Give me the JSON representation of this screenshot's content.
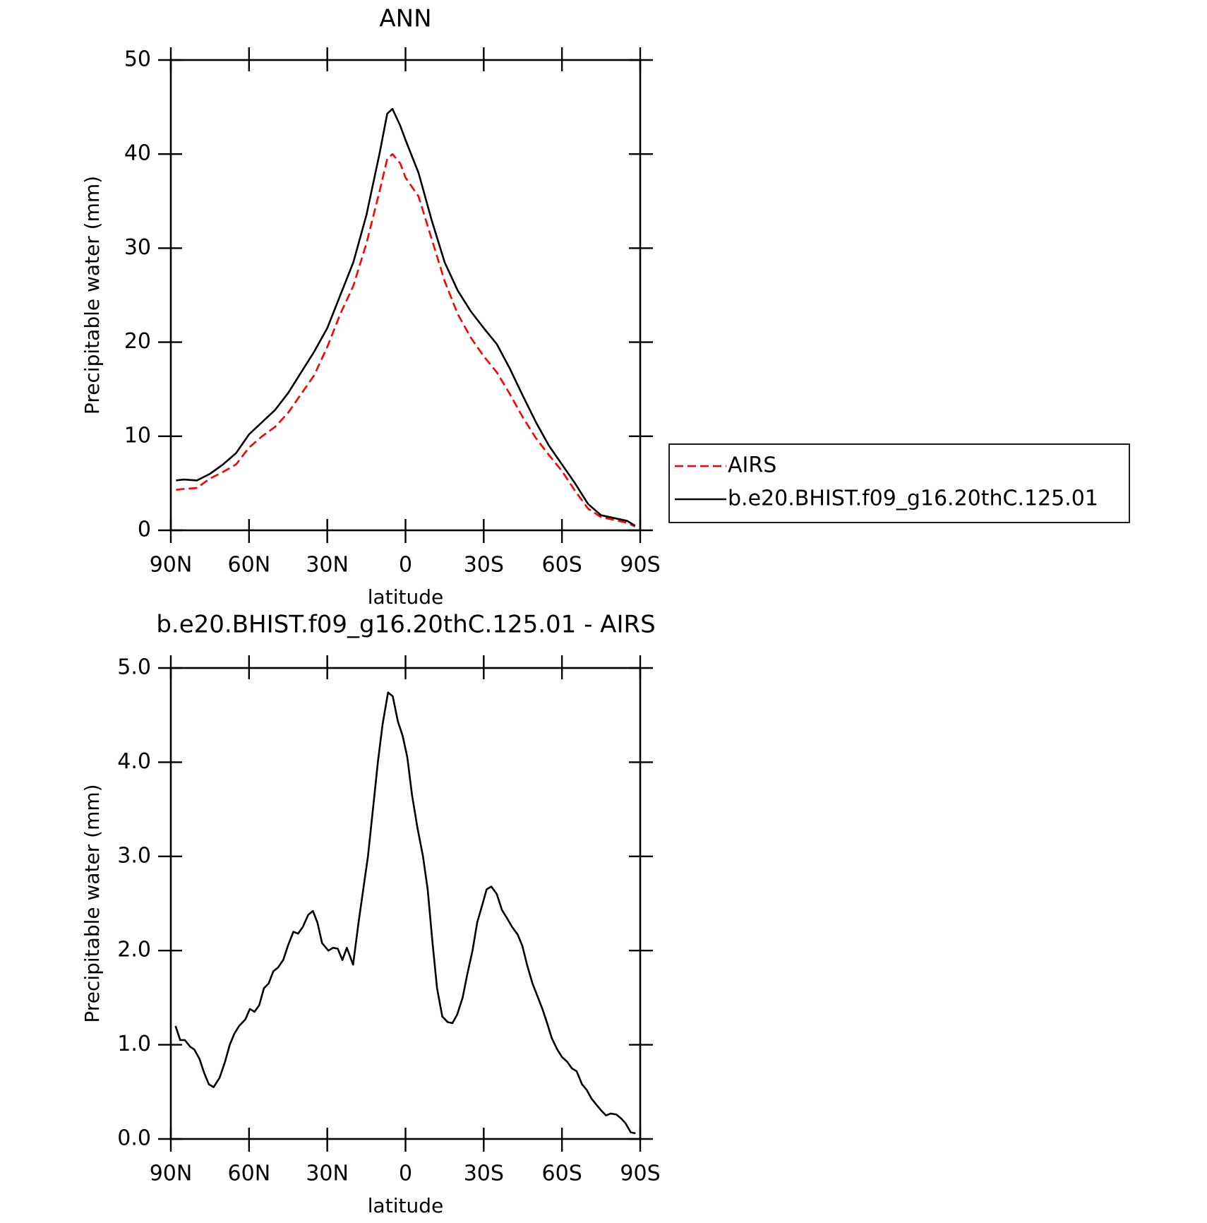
{
  "chart_data": [
    {
      "type": "line",
      "title": "ANN",
      "x_label": "latitude",
      "y_label": "Precipitable water (mm)",
      "x": [
        88,
        85,
        80,
        75,
        70,
        65,
        60,
        55,
        50,
        45,
        40,
        35,
        30,
        25,
        20,
        15,
        10,
        7,
        5,
        2,
        0,
        -5,
        -10,
        -15,
        -20,
        -25,
        -30,
        -35,
        -40,
        -45,
        -50,
        -55,
        -60,
        -65,
        -70,
        -75,
        -80,
        -85,
        -88
      ],
      "series": [
        {
          "name": "AIRS",
          "color": "#ff0000",
          "line_style": "dashed",
          "values": [
            4.3,
            4.4,
            4.5,
            5.5,
            6.2,
            7.0,
            8.8,
            10.0,
            11.0,
            12.5,
            14.5,
            16.5,
            19.5,
            23.0,
            26.0,
            30.5,
            36.0,
            39.5,
            40.0,
            39.0,
            37.5,
            35.5,
            31.0,
            26.5,
            23.0,
            20.5,
            18.5,
            16.8,
            14.5,
            12.0,
            9.8,
            8.0,
            6.3,
            4.2,
            2.3,
            1.4,
            1.1,
            0.8,
            0.4
          ]
        },
        {
          "name": "b.e20.BHIST.f09_g16.20thC.125.01",
          "color": "#000000",
          "line_style": "solid",
          "values": [
            5.3,
            5.4,
            5.3,
            6.0,
            7.0,
            8.2,
            10.2,
            11.5,
            12.8,
            14.6,
            16.8,
            19.0,
            21.5,
            25.0,
            28.5,
            33.5,
            40.0,
            44.3,
            44.8,
            43.0,
            41.5,
            38.0,
            33.0,
            28.5,
            25.5,
            23.3,
            21.5,
            19.8,
            17.2,
            14.3,
            11.5,
            9.0,
            7.0,
            5.0,
            2.8,
            1.6,
            1.3,
            1.0,
            0.5
          ]
        }
      ],
      "xlim": [
        90,
        -90
      ],
      "xticks": [
        {
          "value": 90,
          "label": "90N"
        },
        {
          "value": 60,
          "label": "60N"
        },
        {
          "value": 30,
          "label": "30N"
        },
        0,
        {
          "value": -30,
          "label": "30S"
        },
        {
          "value": -60,
          "label": "60S"
        },
        {
          "value": -90,
          "label": "90S"
        }
      ],
      "ylim": [
        0,
        50
      ],
      "yticks": [
        0,
        10,
        20,
        30,
        40,
        50
      ],
      "legend": "right"
    },
    {
      "type": "line",
      "title": "b.e20.BHIST.f09_g16.20thC.125.01 - AIRS",
      "x_label": "latitude",
      "y_label": "Precipitable water (mm)",
      "x": [
        88.2,
        86.4,
        84.6,
        82.6,
        81,
        79,
        77.2,
        75.4,
        73.6,
        71.3,
        69.2,
        67.4,
        65.6,
        63.8,
        61.4,
        59.7,
        57.9,
        56.1,
        54.3,
        52.5,
        50.7,
        48.9,
        46.9,
        45.1,
        43,
        41.2,
        39.4,
        37.3,
        35.5,
        33.8,
        32,
        29.6,
        27.8,
        26,
        24.2,
        22.5,
        20.1,
        18,
        16.2,
        14.4,
        12.3,
        10.6,
        8.8,
        6.7,
        4.9,
        2.9,
        1.1,
        -0.7,
        -2.5,
        -4.6,
        -6.7,
        -8.5,
        -10.3,
        -12.1,
        -14.1,
        -16.2,
        -18,
        -19.8,
        -21.9,
        -23.7,
        -25.7,
        -27.5,
        -29.6,
        -31.1,
        -32.9,
        -35,
        -37,
        -38.8,
        -40.9,
        -43,
        -44.8,
        -46.6,
        -48.7,
        -50.4,
        -52.5,
        -54.3,
        -56.1,
        -58.2,
        -60,
        -62,
        -63.8,
        -65.6,
        -67.7,
        -69.5,
        -71.3,
        -73.3,
        -75.1,
        -76.9,
        -78.7,
        -80.8,
        -82.6,
        -84.3,
        -86.4,
        -88.2
      ],
      "values": [
        1.2,
        1.05,
        1.05,
        0.98,
        0.95,
        0.85,
        0.7,
        0.58,
        0.55,
        0.65,
        0.82,
        1.0,
        1.12,
        1.2,
        1.27,
        1.38,
        1.35,
        1.42,
        1.6,
        1.65,
        1.78,
        1.82,
        1.9,
        2.05,
        2.2,
        2.18,
        2.25,
        2.38,
        2.42,
        2.3,
        2.08,
        2.0,
        2.03,
        2.02,
        1.9,
        2.03,
        1.85,
        2.3,
        2.65,
        3.0,
        3.55,
        4.0,
        4.4,
        4.74,
        4.7,
        4.43,
        4.28,
        4.05,
        3.65,
        3.3,
        3.0,
        2.65,
        2.1,
        1.6,
        1.3,
        1.24,
        1.23,
        1.32,
        1.5,
        1.75,
        2.0,
        2.3,
        2.5,
        2.65,
        2.68,
        2.6,
        2.43,
        2.35,
        2.25,
        2.17,
        2.05,
        1.85,
        1.65,
        1.53,
        1.38,
        1.23,
        1.07,
        0.95,
        0.87,
        0.82,
        0.75,
        0.72,
        0.58,
        0.52,
        0.43,
        0.36,
        0.3,
        0.25,
        0.27,
        0.26,
        0.22,
        0.17,
        0.07,
        0.06
      ],
      "color": "#000000",
      "xlim": [
        90,
        -90
      ],
      "xticks": [
        {
          "value": 90,
          "label": "90N"
        },
        {
          "value": 60,
          "label": "60N"
        },
        {
          "value": 30,
          "label": "30N"
        },
        0,
        {
          "value": -30,
          "label": "30S"
        },
        {
          "value": -60,
          "label": "60S"
        },
        {
          "value": -90,
          "label": "90S"
        }
      ],
      "ylim": [
        0,
        5
      ],
      "yticks": [
        {
          "value": 0,
          "label": "0.0"
        },
        {
          "value": 1,
          "label": "1.0"
        },
        {
          "value": 2,
          "label": "2.0"
        },
        {
          "value": 3,
          "label": "3.0"
        },
        {
          "value": 4,
          "label": "4.0"
        },
        {
          "value": 5,
          "label": "5.0"
        }
      ]
    }
  ]
}
